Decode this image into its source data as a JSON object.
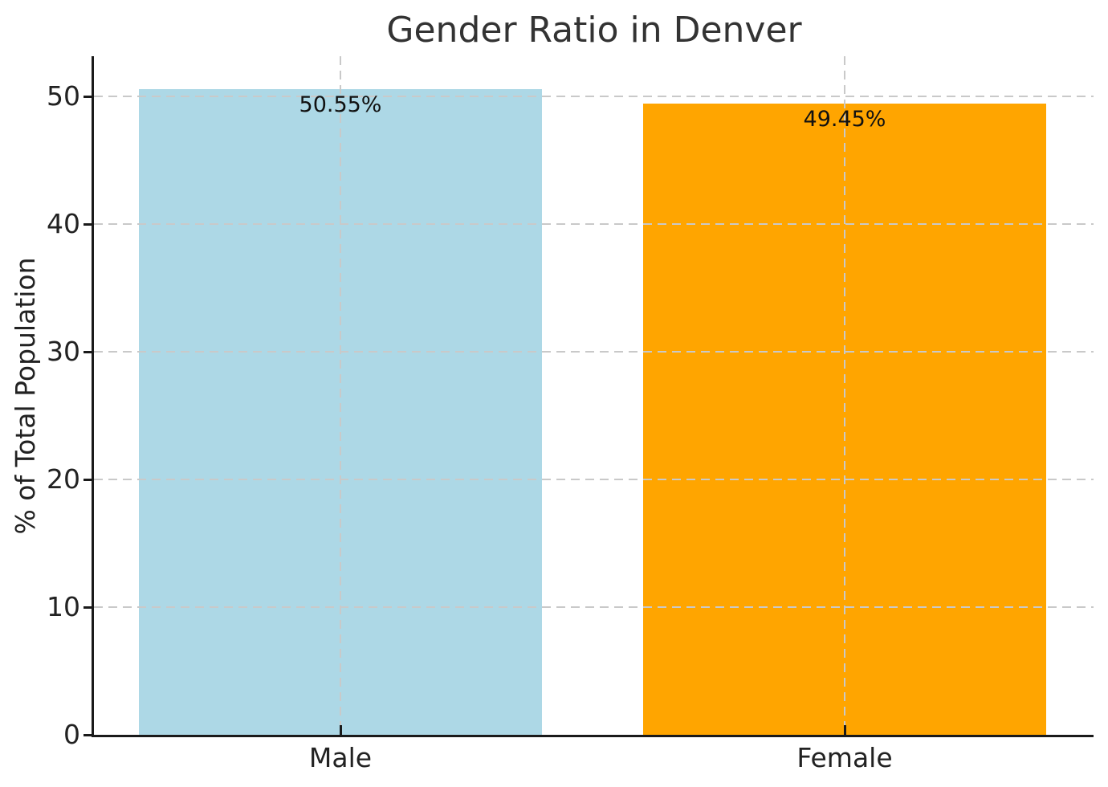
{
  "chart_data": {
    "type": "bar",
    "title": "Gender Ratio in Denver",
    "xlabel": "",
    "ylabel": "% of Total Population",
    "categories": [
      "Male",
      "Female"
    ],
    "values": [
      50.55,
      49.45
    ],
    "value_labels": [
      "50.55%",
      "49.45%"
    ],
    "bar_colors": [
      "#ADD8E6",
      "#FFA500"
    ],
    "yticks": [
      0,
      10,
      20,
      30,
      40,
      50
    ],
    "ylim": [
      0,
      53.1
    ],
    "grid": {
      "style": "dashed",
      "color": "#c9c9c9",
      "horizontal": true,
      "vertical": true,
      "drawn_over_bars": true
    },
    "legend_position": "none",
    "axis_color": "#1a1a1a",
    "text_color": "#222222",
    "value_label_color": "#111111"
  }
}
